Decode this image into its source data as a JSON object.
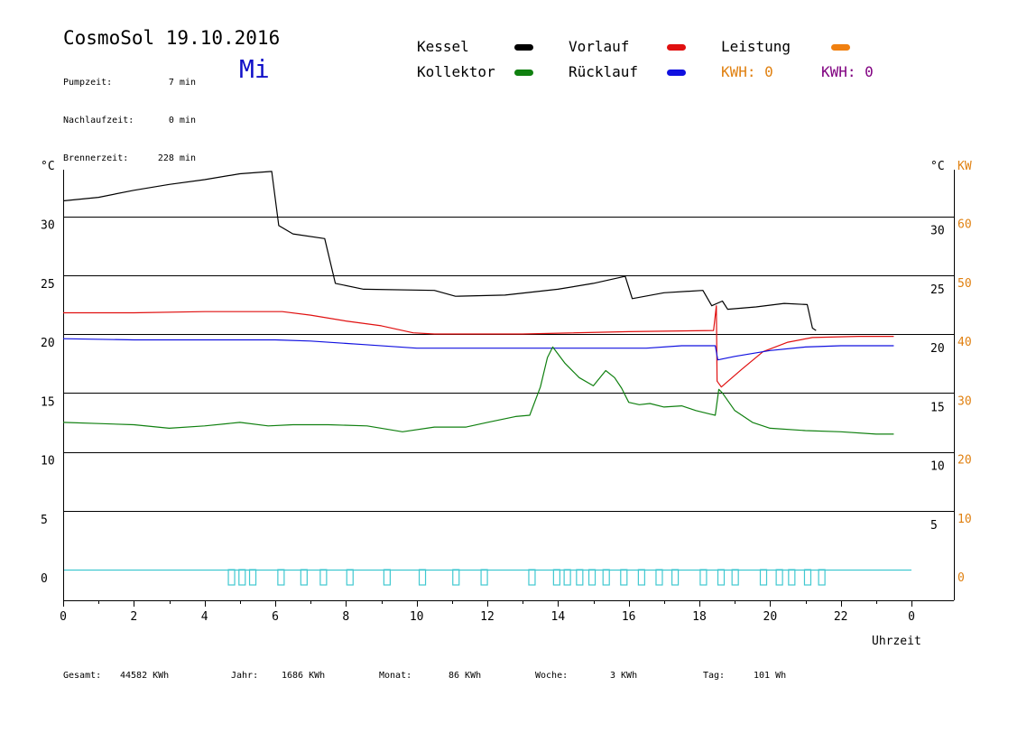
{
  "header": {
    "title": "CosmoSol 19.10.2016",
    "weekday": "Mi",
    "info_rows": [
      {
        "label": "Pumpzeit:",
        "value": "7 min"
      },
      {
        "label": "Nachlaufzeit:",
        "value": "0 min"
      },
      {
        "label": "Brennerzeit:",
        "value": "228 min"
      }
    ]
  },
  "legend": {
    "items": [
      {
        "label": "Kessel",
        "color": "#000000"
      },
      {
        "label": "Vorlauf",
        "color": "#e01010"
      },
      {
        "label": "Leistung",
        "color": "#f08010"
      },
      {
        "label": "Kollektor",
        "color": "#108010"
      },
      {
        "label": "Rücklauf",
        "color": "#1010e0"
      }
    ],
    "kwh_orange": "KWH: 0",
    "kwh_purple": "KWH: 0",
    "kwh_orange_color": "#e08010",
    "kwh_purple_color": "#800080"
  },
  "footer": {
    "stats": [
      {
        "label": "Gesamt:",
        "value": "44582 KWh"
      },
      {
        "label": "Jahr:",
        "value": "1686 KWh"
      },
      {
        "label": "Monat:",
        "value": "86 KWh"
      },
      {
        "label": "Woche:",
        "value": "3 KWh"
      },
      {
        "label": "Tag:",
        "value": "101 Wh"
      }
    ]
  },
  "chart_data": {
    "type": "line",
    "xlabel": "Uhrzeit",
    "x_ticks": [
      "0",
      "2",
      "4",
      "6",
      "8",
      "10",
      "12",
      "14",
      "16",
      "18",
      "20",
      "22",
      "0"
    ],
    "xlim": [
      0,
      24
    ],
    "ylabel_left": "°C",
    "ylabel_right": "°C",
    "ylabel_right2": "KW",
    "ylim": [
      -2.6,
      35
    ],
    "y_ticks_left": [
      "0",
      "5",
      "10",
      "15",
      "20",
      "25",
      "30"
    ],
    "y_ticks_right": [
      "5",
      "10",
      "15",
      "20",
      "25",
      "30"
    ],
    "y2_ticks": [
      "0",
      "10",
      "20",
      "30",
      "40",
      "50",
      "60"
    ],
    "grid": true,
    "series": [
      {
        "name": "Kessel",
        "color": "#000000",
        "points": [
          [
            0,
            31.3
          ],
          [
            1,
            31.6
          ],
          [
            2,
            32.2
          ],
          [
            3,
            32.7
          ],
          [
            4,
            33.1
          ],
          [
            5,
            33.6
          ],
          [
            5.9,
            33.8
          ],
          [
            6.1,
            29.2
          ],
          [
            6.5,
            28.5
          ],
          [
            7.4,
            28.1
          ],
          [
            7.7,
            24.3
          ],
          [
            8.5,
            23.8
          ],
          [
            10.5,
            23.7
          ],
          [
            11.1,
            23.2
          ],
          [
            12.5,
            23.3
          ],
          [
            14,
            23.8
          ],
          [
            15,
            24.3
          ],
          [
            15.9,
            24.9
          ],
          [
            16.1,
            23
          ],
          [
            17,
            23.5
          ],
          [
            18.1,
            23.7
          ],
          [
            18.35,
            22.4
          ],
          [
            18.65,
            22.8
          ],
          [
            18.8,
            22.1
          ],
          [
            19.6,
            22.3
          ],
          [
            20.4,
            22.6
          ],
          [
            21.05,
            22.5
          ],
          [
            21.2,
            20.5
          ],
          [
            21.3,
            20.3
          ]
        ]
      },
      {
        "name": "Vorlauf",
        "color": "#e01010",
        "points": [
          [
            0,
            21.8
          ],
          [
            2,
            21.8
          ],
          [
            4,
            21.9
          ],
          [
            6.2,
            21.9
          ],
          [
            7,
            21.6
          ],
          [
            8,
            21.1
          ],
          [
            9,
            20.7
          ],
          [
            9.9,
            20.1
          ],
          [
            10.5,
            20
          ],
          [
            13,
            20
          ],
          [
            16,
            20.2
          ],
          [
            18.4,
            20.3
          ],
          [
            18.48,
            22.4
          ],
          [
            18.5,
            16
          ],
          [
            18.62,
            15.5
          ],
          [
            19.2,
            17
          ],
          [
            19.8,
            18.5
          ],
          [
            20.5,
            19.3
          ],
          [
            21.2,
            19.7
          ],
          [
            22.5,
            19.8
          ],
          [
            23.5,
            19.8
          ]
        ]
      },
      {
        "name": "Rücklauf",
        "color": "#1010e0",
        "points": [
          [
            0,
            19.6
          ],
          [
            2,
            19.5
          ],
          [
            4,
            19.5
          ],
          [
            6,
            19.5
          ],
          [
            7,
            19.4
          ],
          [
            8.5,
            19.1
          ],
          [
            10,
            18.8
          ],
          [
            12,
            18.8
          ],
          [
            14,
            18.8
          ],
          [
            16.5,
            18.8
          ],
          [
            17.5,
            19
          ],
          [
            18.45,
            19
          ],
          [
            18.52,
            17.8
          ],
          [
            19,
            18.1
          ],
          [
            20,
            18.6
          ],
          [
            21,
            18.9
          ],
          [
            22,
            19
          ],
          [
            23.5,
            19
          ]
        ]
      },
      {
        "name": "Kollektor",
        "color": "#108010",
        "points": [
          [
            0,
            12.5
          ],
          [
            1,
            12.4
          ],
          [
            2,
            12.3
          ],
          [
            3,
            12
          ],
          [
            4,
            12.2
          ],
          [
            5,
            12.5
          ],
          [
            5.8,
            12.2
          ],
          [
            6.5,
            12.3
          ],
          [
            7.5,
            12.3
          ],
          [
            8.6,
            12.2
          ],
          [
            9.6,
            11.7
          ],
          [
            10.5,
            12.1
          ],
          [
            11.4,
            12.1
          ],
          [
            12,
            12.5
          ],
          [
            12.8,
            13
          ],
          [
            13.2,
            13.1
          ],
          [
            13.5,
            15.5
          ],
          [
            13.7,
            18
          ],
          [
            13.85,
            18.9
          ],
          [
            14.2,
            17.5
          ],
          [
            14.6,
            16.3
          ],
          [
            15,
            15.6
          ],
          [
            15.35,
            16.9
          ],
          [
            15.6,
            16.3
          ],
          [
            15.8,
            15.4
          ],
          [
            16,
            14.2
          ],
          [
            16.3,
            14
          ],
          [
            16.6,
            14.1
          ],
          [
            17,
            13.8
          ],
          [
            17.5,
            13.9
          ],
          [
            17.9,
            13.5
          ],
          [
            18.3,
            13.2
          ],
          [
            18.45,
            13.1
          ],
          [
            18.55,
            15.3
          ],
          [
            18.65,
            15
          ],
          [
            19,
            13.5
          ],
          [
            19.5,
            12.5
          ],
          [
            20,
            12
          ],
          [
            21,
            11.8
          ],
          [
            22,
            11.7
          ],
          [
            23,
            11.5
          ],
          [
            23.5,
            11.5
          ]
        ]
      }
    ],
    "pump_events_hours": [
      4.75,
      5.05,
      5.35,
      6.15,
      6.8,
      7.35,
      8.1,
      9.15,
      10.15,
      11.1,
      11.9,
      13.25,
      13.95,
      14.25,
      14.6,
      14.95,
      15.35,
      15.85,
      16.35,
      16.85,
      17.3,
      18.1,
      18.6,
      19,
      19.8,
      20.25,
      20.6,
      21.05,
      21.45
    ]
  }
}
